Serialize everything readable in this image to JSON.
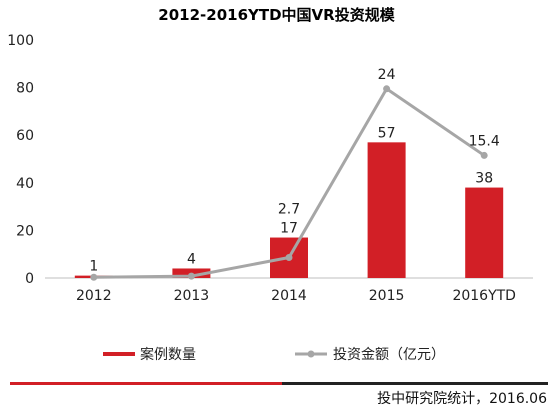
{
  "colors": {
    "bar": "#d21f26",
    "line": "#a6a6a6",
    "footer_red": "#d21f26",
    "footer_dark": "#222222"
  },
  "chart_data": {
    "type": "bar",
    "title": "2012-2016YTD中国VR投资规模",
    "categories": [
      "2012",
      "2013",
      "2014",
      "2015",
      "2016YTD"
    ],
    "ylim": [
      0,
      100
    ],
    "yticks": [
      "0",
      "20",
      "40",
      "60",
      "80",
      "100"
    ],
    "grid": false,
    "legend_position": "bottom",
    "series": [
      {
        "name": "案例数量",
        "type": "bar",
        "values": [
          1,
          4,
          17,
          57,
          38
        ],
        "labels": [
          "1",
          "4",
          "17",
          "57",
          "38"
        ]
      },
      {
        "name": "投资金额（亿元）",
        "type": "line",
        "values": [
          0.3,
          0.8,
          2.7,
          24,
          15.4
        ],
        "plot_values": [
          0.3,
          0.8,
          8.6,
          79.5,
          51.5
        ],
        "labels": [
          "",
          "",
          "2.7",
          "24",
          "15.4"
        ]
      }
    ]
  },
  "footer": {
    "source": "投中研究院统计，2016.06"
  }
}
